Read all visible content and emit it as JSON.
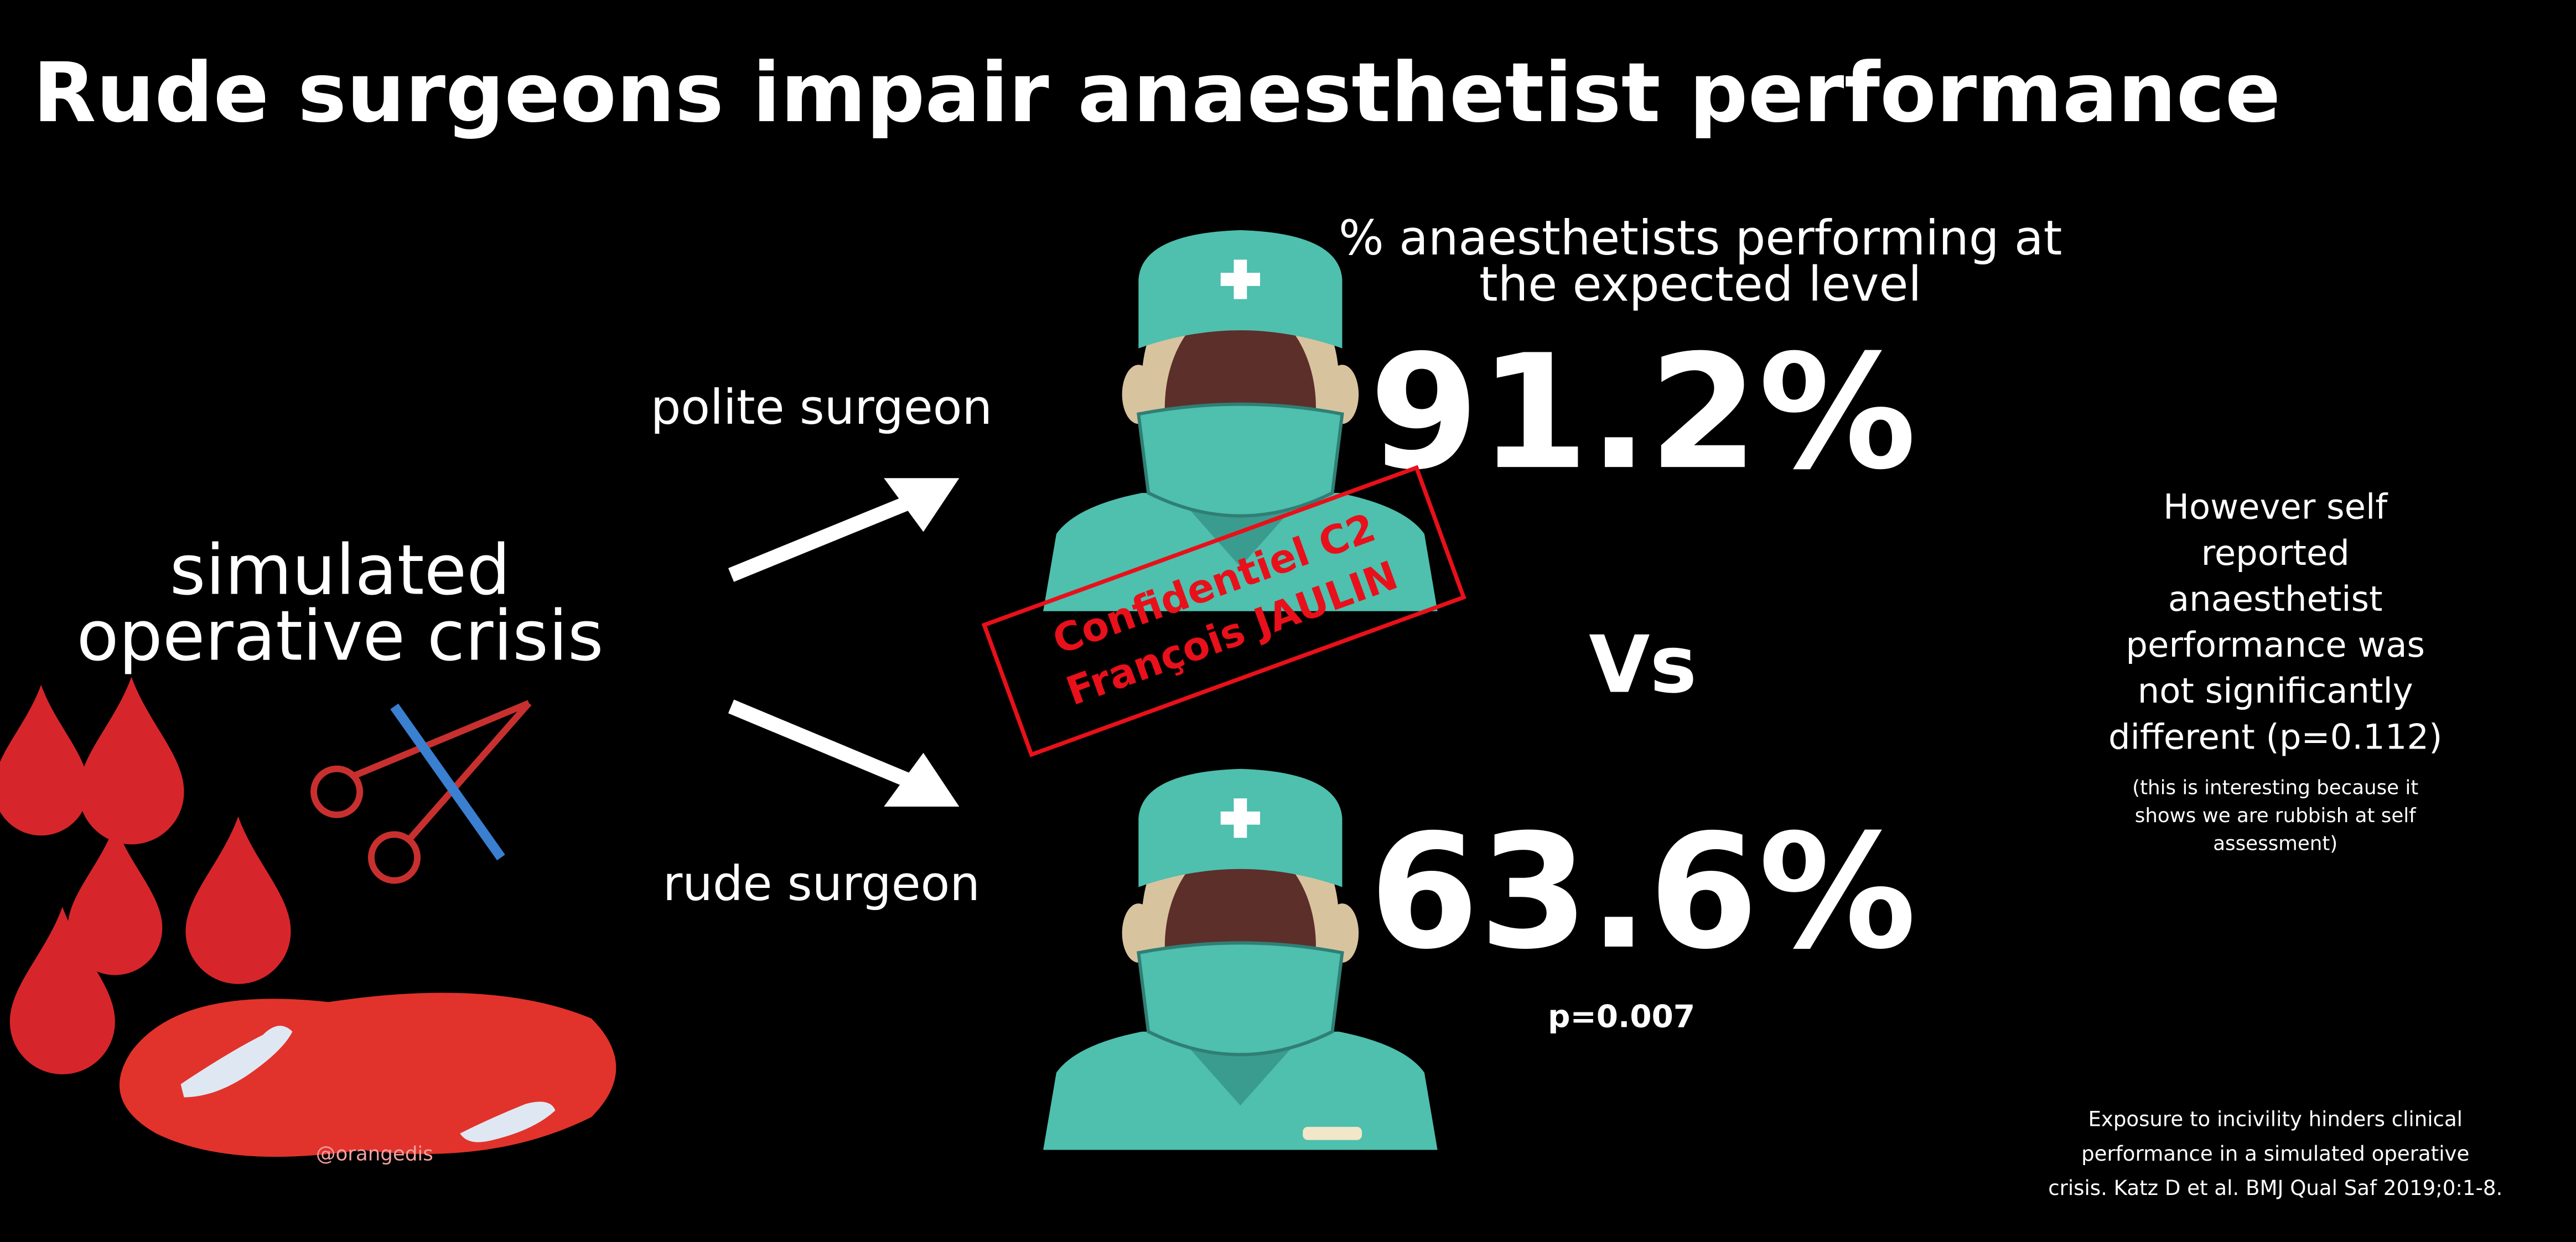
{
  "title": "Rude surgeons impair anaesthetist performance",
  "subtitle": [
    "% anaesthetists performing at",
    "the expected level"
  ],
  "scenario": [
    "simulated",
    "operative crisis"
  ],
  "polite": {
    "label": "polite surgeon",
    "result": "91.2%"
  },
  "versus": "Vs",
  "rude": {
    "label": "rude surgeon",
    "result": "63.6%",
    "p_value": "p=0.007"
  },
  "side_note": [
    "However self",
    "reported",
    "anaesthetist",
    "performance was",
    "not significantly",
    "different (p=0.112)"
  ],
  "side_aside": [
    "(this is interesting because it",
    "shows we are rubbish at self",
    "assessment)"
  ],
  "citation": [
    "Exposure to incivility hinders clinical",
    "performance in a simulated operative",
    "crisis. Katz D et al. BMJ Qual Saf 2019;0:1-8."
  ],
  "credit": "@orangedis",
  "watermark": [
    "Confidentiel C2",
    "François JAULIN"
  ]
}
